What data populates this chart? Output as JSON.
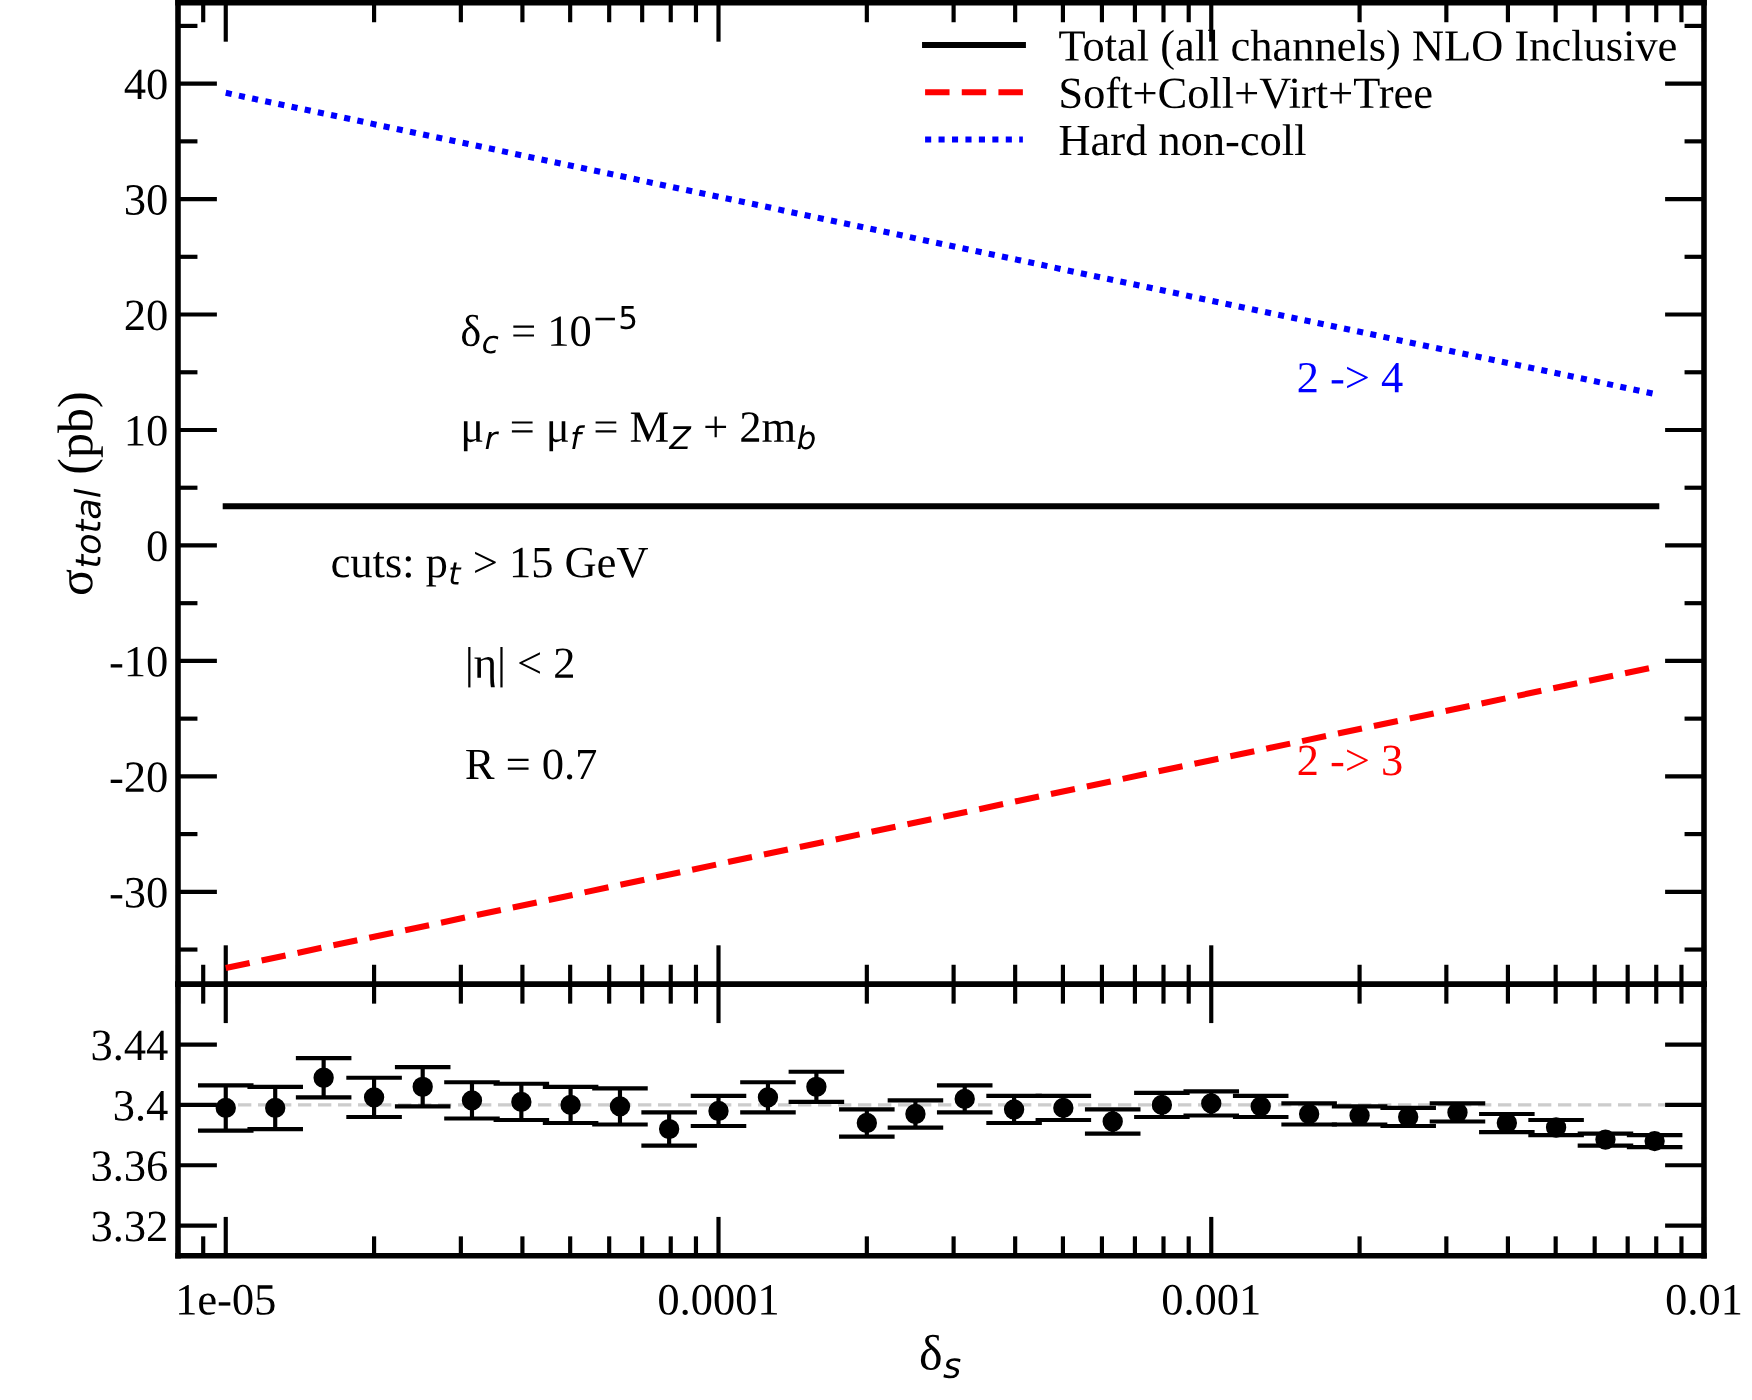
{
  "chart_data": [
    {
      "type": "line",
      "log": "x",
      "xlim": [
        8e-06,
        0.01
      ],
      "xticks": [
        1e-05,
        0.0001,
        0.001,
        0.01
      ],
      "ylim": [
        -38,
        47
      ],
      "yticks": [
        -30,
        -20,
        -10,
        0,
        10,
        20,
        30,
        40
      ],
      "tick_labels": "y",
      "ylabel": "σ$_{total}$ (pb)",
      "legend": "top right",
      "series": [
        {
          "name": "Total (all channels) NLO Inclusive",
          "color": "#000000",
          "line_style": "solid",
          "x": [
            1e-05,
            0.0001,
            0.001,
            0.008
          ],
          "values": [
            3.4,
            3.4,
            3.4,
            3.4
          ]
        },
        {
          "name": "Soft+Coll+Virt+Tree",
          "color": "#ff0000",
          "line_style": "dashed",
          "x": [
            1e-05,
            0.0001,
            0.001,
            0.008
          ],
          "values": [
            -36.6,
            -27.6,
            -18.6,
            -10.5
          ]
        },
        {
          "name": "Hard non-coll",
          "color": "#0000ff",
          "line_style": "dotted",
          "x": [
            1e-05,
            0.0001,
            0.001,
            0.008
          ],
          "values": [
            39.2,
            30.2,
            21.2,
            13.1
          ]
        }
      ],
      "annotations": [
        "δ$_{c}$ = 10$^{−5}$",
        "μ$_{r}$ = μ$_{f}$ = M$_{Z}$ + 2m$_{b}$",
        "cuts: p$_{t}$ > 15 GeV",
        "|η| < 2",
        "R = 0.7",
        "2 -> 4",
        "2 -> 3"
      ]
    },
    {
      "type": "scatter",
      "log": "x",
      "xlim": [
        8e-06,
        0.01
      ],
      "xticks": [
        1e-05,
        0.0001,
        0.001,
        0.01
      ],
      "ylim": [
        3.3,
        3.48
      ],
      "yticks": [
        3.32,
        3.36,
        3.4,
        3.44
      ],
      "xlabel": "δ$_{s}$",
      "marker": "circle",
      "ref_lines": [
        {
          "axis": "y",
          "value": 3.4,
          "color": "#cccccc",
          "line_style": "dashed"
        }
      ],
      "series": [
        {
          "color": "#000000",
          "x": [
            1e-05,
            1.26e-05,
            1.58e-05,
            2e-05,
            2.51e-05,
            3.16e-05,
            3.98e-05,
            5.01e-05,
            6.31e-05,
            7.94e-05,
            0.0001,
            0.000126,
            0.000158,
            0.0002,
            0.000251,
            0.000316,
            0.000398,
            0.000501,
            0.000631,
            0.000794,
            0.001,
            0.00126,
            0.00158,
            0.002,
            0.00251,
            0.00316,
            0.00398,
            0.00501,
            0.00631,
            0.00794
          ],
          "values": [
            3.398,
            3.398,
            3.418,
            3.405,
            3.412,
            3.403,
            3.402,
            3.4,
            3.399,
            3.384,
            3.396,
            3.405,
            3.412,
            3.388,
            3.394,
            3.404,
            3.397,
            3.398,
            3.389,
            3.4,
            3.401,
            3.399,
            3.394,
            3.393,
            3.392,
            3.395,
            3.388,
            3.385,
            3.377,
            3.376
          ],
          "errors": [
            0.015,
            0.014,
            0.013,
            0.013,
            0.013,
            0.012,
            0.012,
            0.012,
            0.012,
            0.011,
            0.01,
            0.01,
            0.01,
            0.009,
            0.009,
            0.009,
            0.009,
            0.008,
            0.008,
            0.008,
            0.008,
            0.007,
            0.007,
            0.006,
            0.006,
            0.006,
            0.006,
            0.005,
            0.004,
            0.004
          ]
        }
      ]
    }
  ]
}
